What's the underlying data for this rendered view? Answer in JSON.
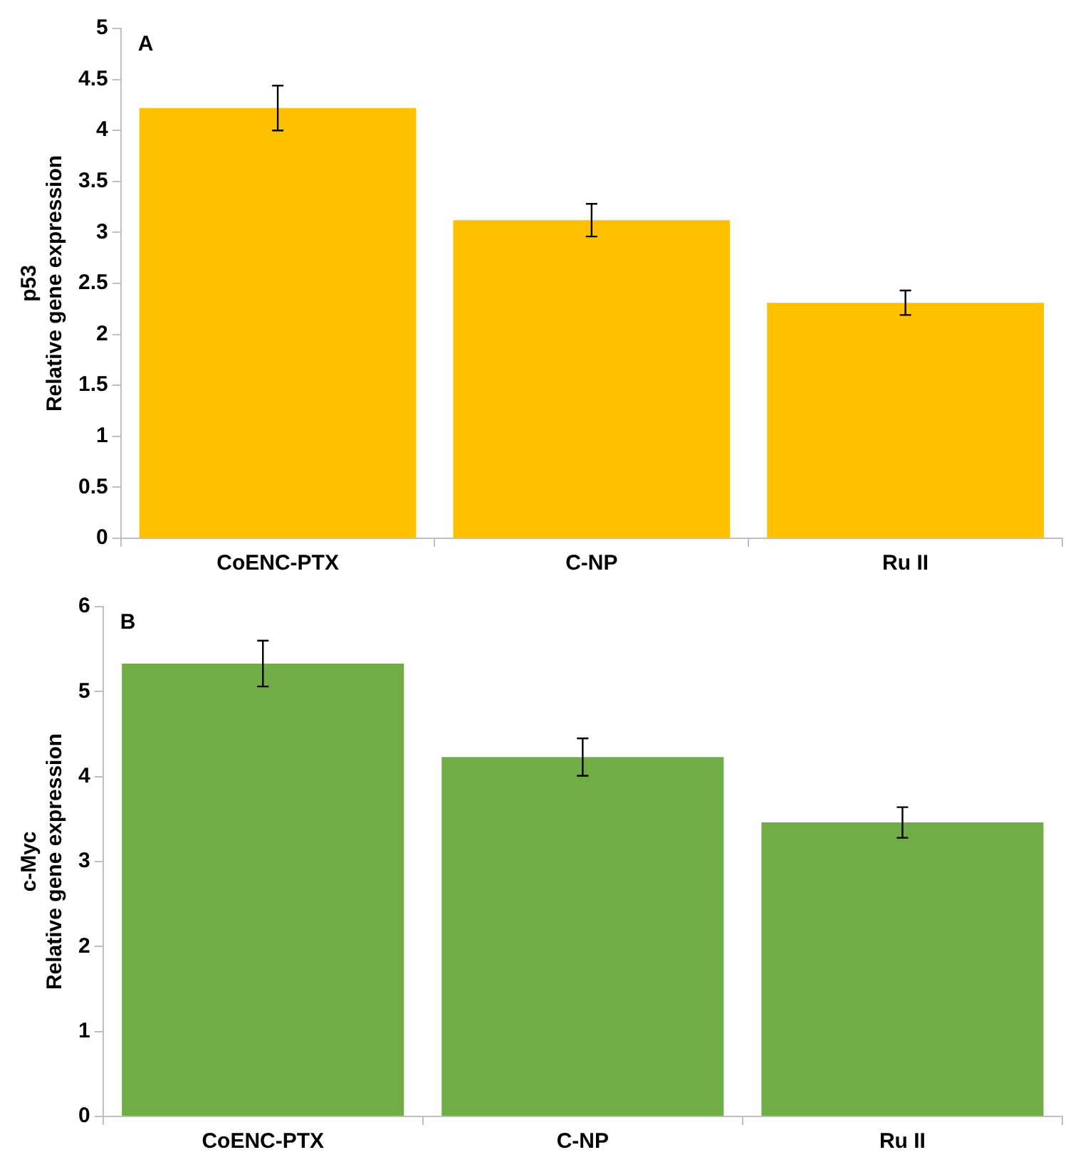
{
  "chart_data": [
    {
      "type": "bar",
      "annotations": [
        "A"
      ],
      "ylabel": "p53\nRelative gene expression",
      "categories": [
        "CoENC-PTX",
        "C-NP",
        "Ru II"
      ],
      "values": [
        4.22,
        3.12,
        2.31
      ],
      "errors": [
        0.22,
        0.16,
        0.12
      ],
      "color": "#ffc000",
      "ylim": [
        0,
        5
      ],
      "yticks": [
        0,
        0.5,
        1,
        1.5,
        2,
        2.5,
        3,
        3.5,
        4,
        4.5,
        5
      ],
      "grid": false,
      "legend": false
    },
    {
      "type": "bar",
      "annotations": [
        "B"
      ],
      "ylabel": "c-Myc\nRelative gene expression",
      "categories": [
        "CoENC-PTX",
        "C-NP",
        "Ru II"
      ],
      "values": [
        5.33,
        4.23,
        3.46
      ],
      "errors": [
        0.27,
        0.22,
        0.18
      ],
      "color": "#70ad47",
      "ylim": [
        0,
        6
      ],
      "yticks": [
        0,
        1,
        2,
        3,
        4,
        5,
        6
      ],
      "grid": false,
      "legend": false
    }
  ]
}
